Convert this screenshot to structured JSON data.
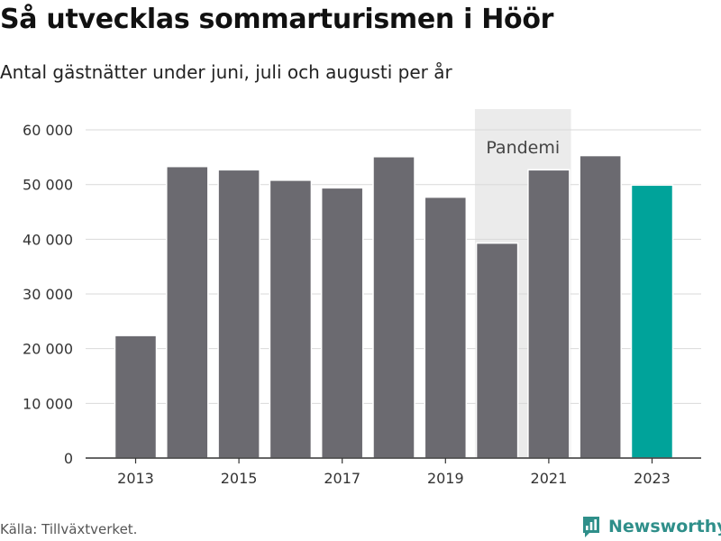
{
  "title": "Så utvecklas sommarturismen i Höör",
  "subtitle": "Antal gästnätter under juni, juli och augusti per år",
  "source": "Källa: Tillväxtverket.",
  "brand": "Newsworthy",
  "brand_icon": "newsworthy-logo-icon",
  "colors": {
    "bar": "#6b6a70",
    "highlight": "#00a39a",
    "band": "#ebebeb",
    "grid": "#d9d9d9",
    "brand": "#2f8f8a"
  },
  "chart_data": {
    "type": "bar",
    "categories": [
      "2013",
      "2014",
      "2015",
      "2016",
      "2017",
      "2018",
      "2019",
      "2020",
      "2021",
      "2022",
      "2023"
    ],
    "values": [
      22400,
      53300,
      52700,
      50800,
      49400,
      55100,
      47700,
      39300,
      52700,
      55300,
      49900
    ],
    "highlight_category": "2023",
    "x_tick_labels": [
      "2013",
      "2015",
      "2017",
      "2019",
      "2021",
      "2023"
    ],
    "y_ticks": [
      0,
      10000,
      20000,
      30000,
      40000,
      50000,
      60000
    ],
    "y_tick_labels": [
      "0",
      "10 000",
      "20 000",
      "30 000",
      "40 000",
      "50 000",
      "60 000"
    ],
    "ylim": [
      0,
      63800
    ],
    "annotation": {
      "label": "Pandemi",
      "from": "2020",
      "to": "2021"
    },
    "xlabel": "",
    "ylabel": "",
    "grid": true
  }
}
